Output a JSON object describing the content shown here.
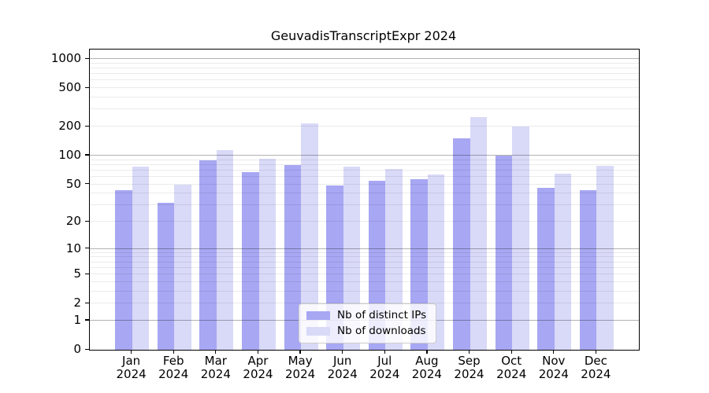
{
  "title": "GeuvadisTranscriptExpr 2024",
  "colors": {
    "ips_bar": "#a7a7f3",
    "downloads_bar": "#d9d9f8",
    "grid_major": "rgba(0,0,0,0.30)",
    "grid_minor": "rgba(0,0,0,0.08)",
    "spine": "#000000",
    "legend_border": "#cccccc",
    "legend_bg": "rgba(255,255,255,0.8)"
  },
  "chart_data": {
    "type": "bar",
    "title": "GeuvadisTranscriptExpr 2024",
    "categories": [
      "Jan",
      "Feb",
      "Mar",
      "Apr",
      "May",
      "Jun",
      "Jul",
      "Aug",
      "Sep",
      "Oct",
      "Nov",
      "Dec"
    ],
    "x_year_label": "2024",
    "series": [
      {
        "name": "Nb of distinct IPs",
        "color_key": "ips_bar",
        "values": [
          43,
          32,
          90,
          67,
          80,
          49,
          55,
          57,
          150,
          100,
          46,
          43
        ]
      },
      {
        "name": "Nb of downloads",
        "color_key": "downloads_bar",
        "values": [
          76,
          50,
          113,
          93,
          215,
          76,
          72,
          64,
          250,
          200,
          65,
          78
        ]
      }
    ],
    "xlabel": "",
    "ylabel": "",
    "y_scale": "log10(1+x)",
    "y_ticks": [
      0,
      1,
      2,
      5,
      10,
      20,
      50,
      100,
      200,
      500,
      1000
    ],
    "ylim": [
      0,
      1253
    ],
    "grid": true,
    "legend_position": "bottom-center-inside"
  }
}
